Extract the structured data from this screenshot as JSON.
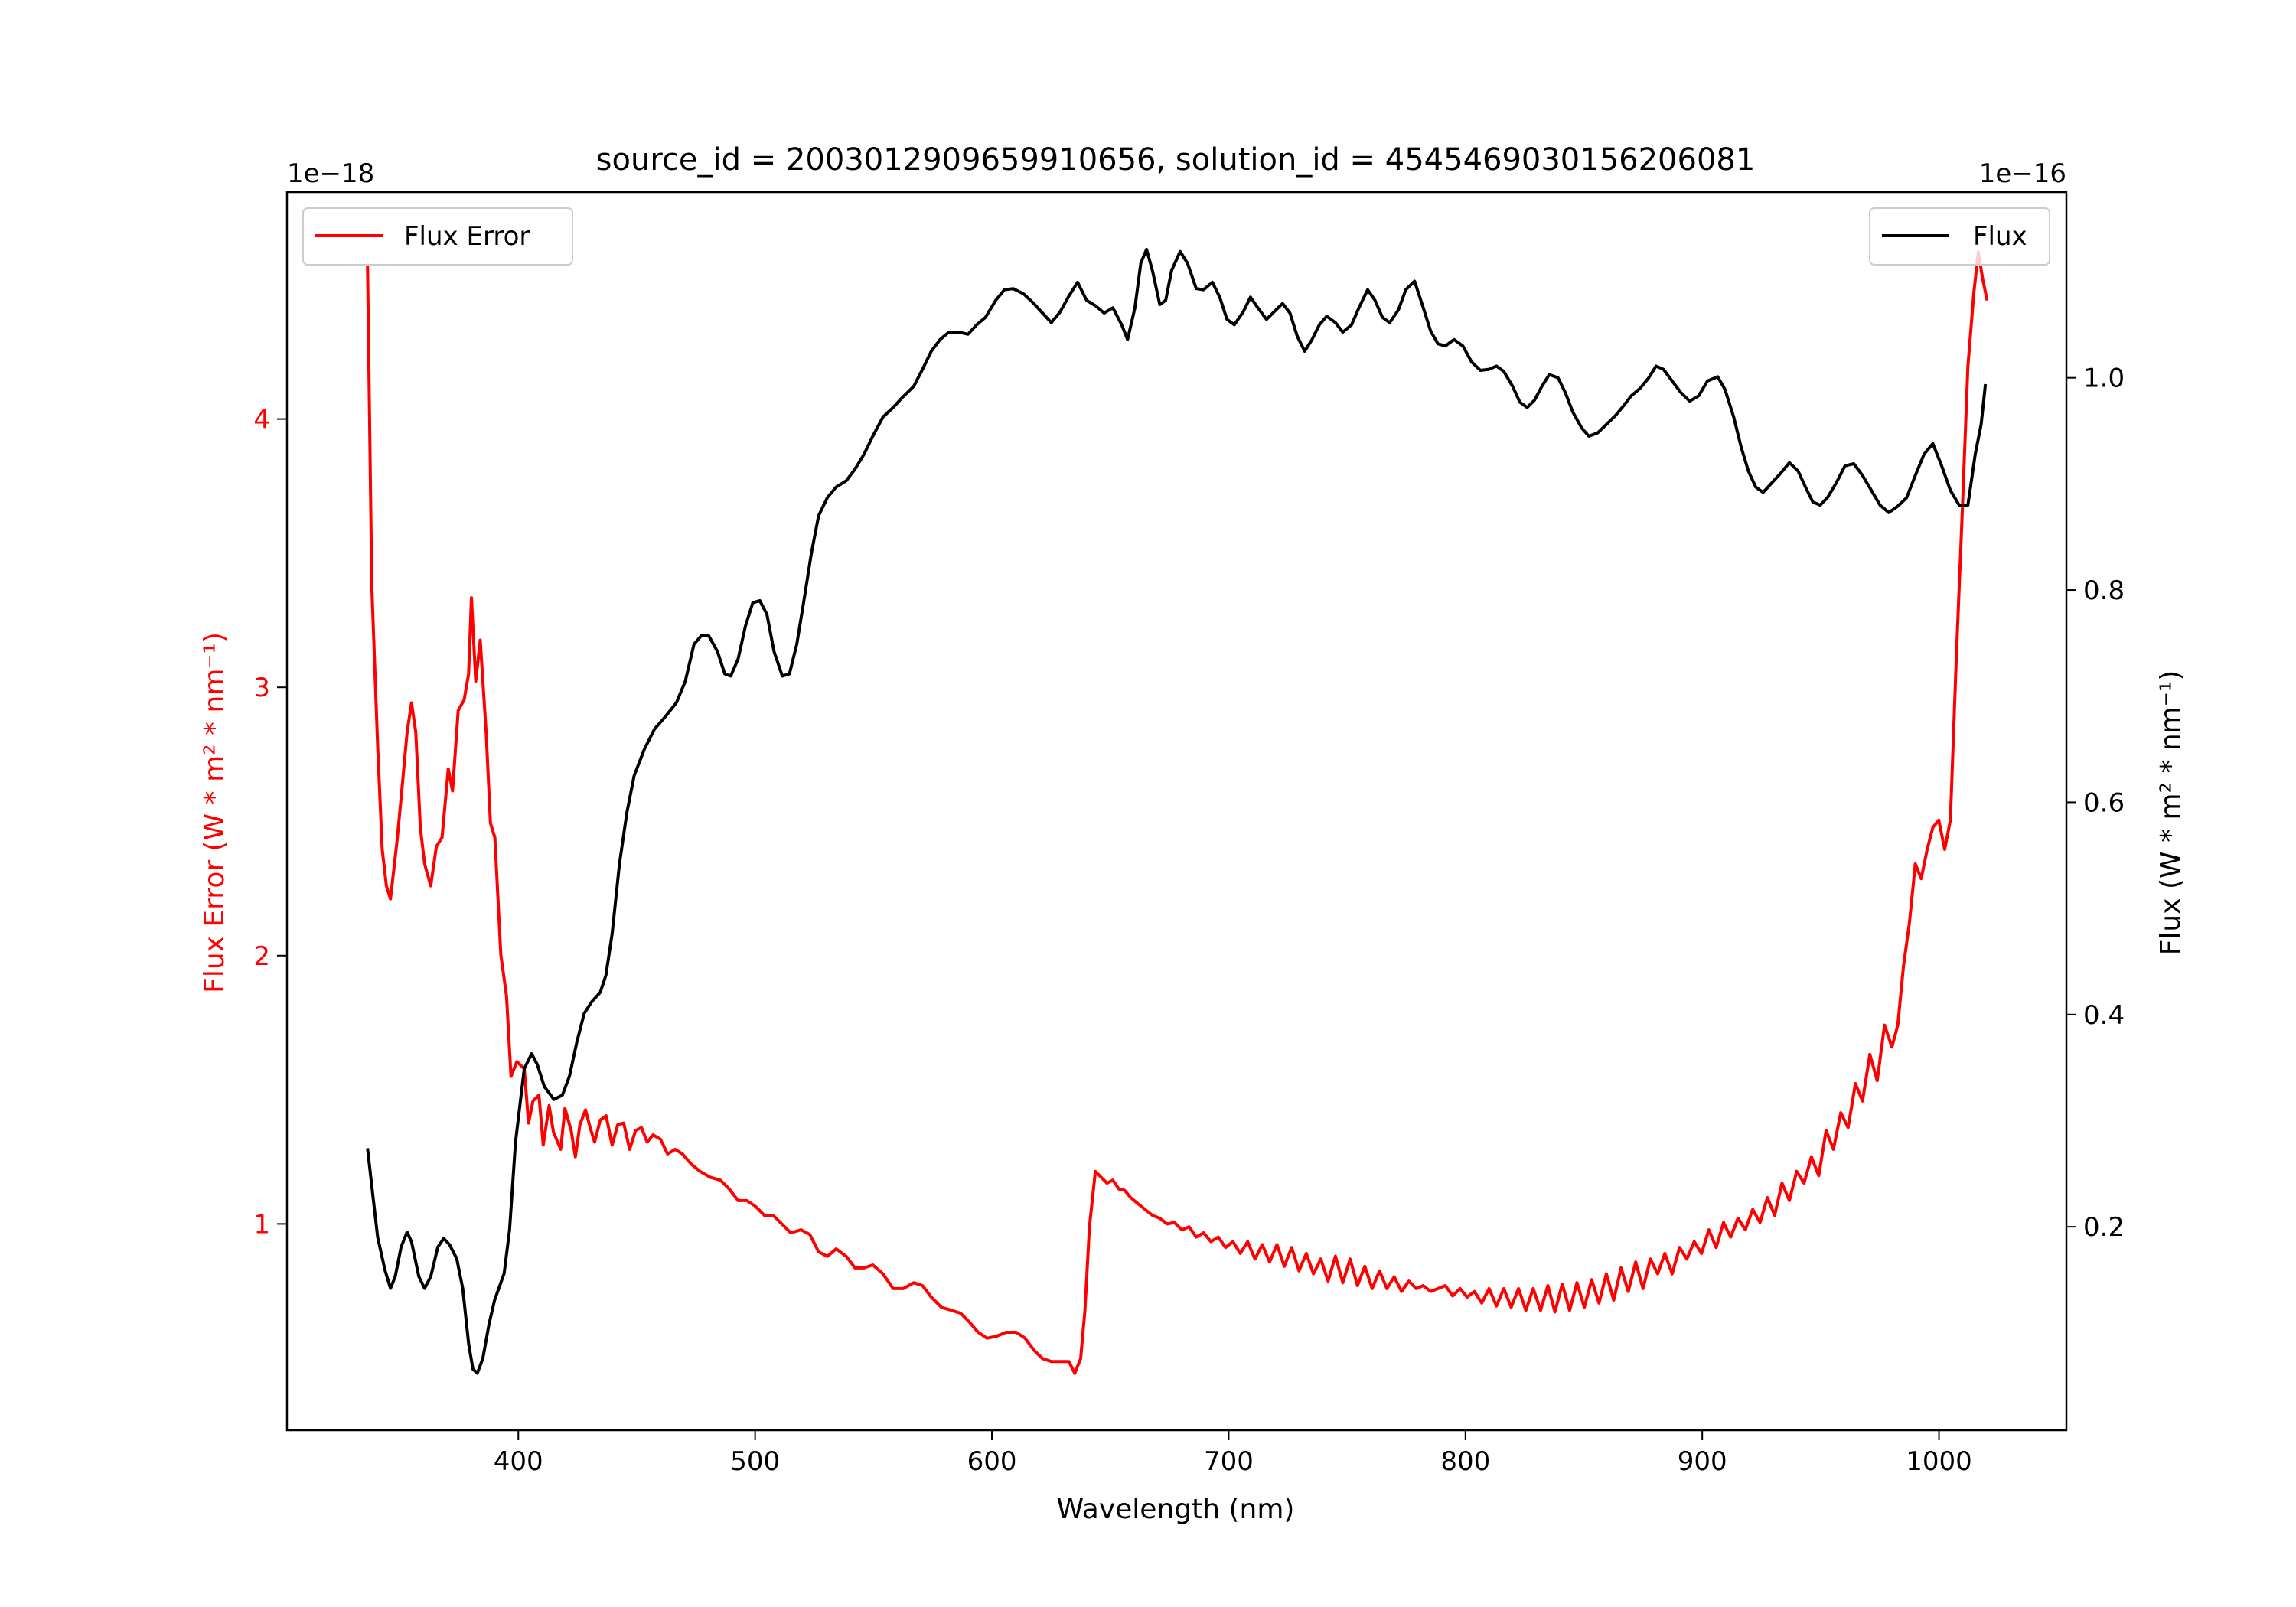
{
  "chart_data": {
    "type": "line",
    "title": "source_id = 2003012909659910656, solution_id = 4545469030156206081",
    "xlabel": "Wavelength (nm)",
    "ylabel_left": "Flux Error (W * m² * nm⁻¹)",
    "ylabel_right": "Flux (W * m² * nm⁻¹)",
    "offset_left": "1e−18",
    "offset_right": "1e−16",
    "xlim": [
      302.3,
      1053.8
    ],
    "ylim_left": [
      0.231,
      4.846
    ],
    "ylim_right": [
      0.0083,
      1.175
    ],
    "xticks": [
      400,
      500,
      600,
      700,
      800,
      900,
      1000
    ],
    "yticks_left": [
      1,
      2,
      3,
      4
    ],
    "yticks_right": [
      0.2,
      0.4,
      0.6,
      0.8,
      1.0
    ],
    "grid": false,
    "series": [
      {
        "name": "Flux Error",
        "axis": "left",
        "color": "#ff0000",
        "legend": "upper-left",
        "x": [
          336.3,
          338.1,
          340.6,
          342.5,
          344.3,
          346,
          348.7,
          350.5,
          353,
          354.9,
          356.7,
          358.6,
          360.4,
          363,
          365.4,
          367.8,
          370.4,
          372.2,
          374.6,
          377.1,
          379,
          380.2,
          382,
          383.9,
          386.4,
          388.2,
          390.1,
          392.6,
          395,
          396.9,
          399.4,
          402.5,
          404.3,
          406.2,
          408.7,
          410.5,
          413,
          414.8,
          417.9,
          419.7,
          422.3,
          424.1,
          426,
          428.4,
          430.3,
          432.2,
          434.6,
          437.1,
          439.6,
          442,
          444.5,
          447,
          449.5,
          452,
          454.4,
          456.9,
          460,
          463,
          466.2,
          469.3,
          473,
          476.7,
          481,
          485.3,
          489.1,
          492.8,
          496.5,
          500.2,
          503.9,
          507.6,
          511.3,
          515,
          519.4,
          523.1,
          526.8,
          530.5,
          534.2,
          538.5,
          542.2,
          546,
          549.7,
          554,
          558.3,
          562.6,
          567,
          570.7,
          574.4,
          578.7,
          583,
          586.8,
          590.5,
          594.2,
          597.9,
          601.6,
          606,
          610.3,
          614,
          617.7,
          621.4,
          625.1,
          628.8,
          632.5,
          635,
          637.5,
          639.3,
          641.2,
          643.7,
          646.1,
          648.6,
          651.1,
          653.6,
          656.1,
          658.6,
          661.6,
          664.7,
          667.8,
          670.9,
          674,
          677.1,
          680.2,
          683.3,
          686.3,
          689.4,
          692.5,
          695.6,
          698.7,
          701.8,
          704.9,
          708,
          711.1,
          714.2,
          717.3,
          720.4,
          723.5,
          726.6,
          729.7,
          732.8,
          735.8,
          738.9,
          742,
          745.1,
          748.2,
          751.3,
          754.4,
          757.5,
          760.6,
          763.7,
          766.8,
          769.9,
          773,
          776.1,
          779.2,
          782.2,
          785.3,
          788.4,
          791.5,
          794.6,
          797.7,
          800.7,
          803.8,
          806.9,
          810,
          813.1,
          816.2,
          819.3,
          822.4,
          825.5,
          828.6,
          831.7,
          834.8,
          837.8,
          840.9,
          844,
          847.1,
          850.2,
          853.3,
          856.4,
          859.5,
          862.6,
          865.7,
          868.8,
          871.9,
          875,
          878.1,
          881.2,
          884.2,
          887.3,
          890.4,
          893.5,
          896.6,
          899.7,
          902.8,
          905.9,
          909,
          912,
          915.1,
          918.2,
          921.3,
          924.4,
          927.5,
          930.6,
          933.7,
          936.8,
          939.9,
          943,
          946.1,
          949.2,
          952.3,
          955.4,
          958.5,
          961.6,
          964.7,
          967.7,
          970.8,
          973.9,
          977,
          980.1,
          982.6,
          985,
          987.5,
          990,
          992.5,
          995,
          997.4,
          999.9,
          1002.4,
          1004.8,
          1007.3,
          1009.8,
          1012.2,
          1014.7,
          1016.6,
          1018.4,
          1020.3
        ],
        "y": [
          4.578,
          3.378,
          2.778,
          2.396,
          2.26,
          2.211,
          2.423,
          2.587,
          2.832,
          2.942,
          2.832,
          2.478,
          2.342,
          2.26,
          2.407,
          2.44,
          2.696,
          2.614,
          2.914,
          2.953,
          3.05,
          3.334,
          3.023,
          3.176,
          2.832,
          2.494,
          2.44,
          2.003,
          1.85,
          1.55,
          1.605,
          1.578,
          1.376,
          1.458,
          1.48,
          1.294,
          1.441,
          1.343,
          1.278,
          1.43,
          1.348,
          1.25,
          1.37,
          1.425,
          1.36,
          1.305,
          1.387,
          1.403,
          1.294,
          1.37,
          1.376,
          1.278,
          1.348,
          1.359,
          1.305,
          1.332,
          1.316,
          1.261,
          1.278,
          1.261,
          1.223,
          1.196,
          1.174,
          1.163,
          1.13,
          1.087,
          1.087,
          1.065,
          1.032,
          1.032,
          1.0,
          0.967,
          0.978,
          0.961,
          0.896,
          0.879,
          0.907,
          0.879,
          0.836,
          0.836,
          0.847,
          0.814,
          0.759,
          0.759,
          0.781,
          0.77,
          0.727,
          0.689,
          0.678,
          0.667,
          0.634,
          0.596,
          0.574,
          0.58,
          0.596,
          0.596,
          0.574,
          0.53,
          0.498,
          0.487,
          0.487,
          0.487,
          0.443,
          0.498,
          0.678,
          0.989,
          1.196,
          1.174,
          1.152,
          1.163,
          1.13,
          1.125,
          1.098,
          1.076,
          1.054,
          1.032,
          1.021,
          1.0,
          1.005,
          0.978,
          0.989,
          0.951,
          0.967,
          0.934,
          0.951,
          0.912,
          0.934,
          0.89,
          0.934,
          0.869,
          0.923,
          0.858,
          0.923,
          0.842,
          0.912,
          0.825,
          0.89,
          0.814,
          0.869,
          0.787,
          0.88,
          0.781,
          0.869,
          0.77,
          0.842,
          0.759,
          0.825,
          0.759,
          0.803,
          0.748,
          0.787,
          0.759,
          0.77,
          0.748,
          0.759,
          0.77,
          0.732,
          0.759,
          0.727,
          0.748,
          0.705,
          0.759,
          0.694,
          0.759,
          0.689,
          0.759,
          0.678,
          0.759,
          0.678,
          0.77,
          0.672,
          0.776,
          0.678,
          0.781,
          0.689,
          0.792,
          0.705,
          0.814,
          0.716,
          0.836,
          0.748,
          0.858,
          0.759,
          0.869,
          0.814,
          0.89,
          0.814,
          0.912,
          0.869,
          0.934,
          0.89,
          0.978,
          0.912,
          1.005,
          0.951,
          1.021,
          0.978,
          1.054,
          1.005,
          1.098,
          1.032,
          1.152,
          1.087,
          1.196,
          1.152,
          1.25,
          1.18,
          1.348,
          1.278,
          1.414,
          1.359,
          1.523,
          1.458,
          1.632,
          1.534,
          1.741,
          1.659,
          1.741,
          1.96,
          2.123,
          2.342,
          2.287,
          2.396,
          2.478,
          2.505,
          2.396,
          2.505,
          3.105,
          3.651,
          4.196,
          4.469,
          4.622,
          4.524,
          4.442
        ]
      },
      {
        "name": "Flux",
        "axis": "right",
        "color": "#000000",
        "legend": "upper-right",
        "x": [
          336.3,
          338.8,
          340.6,
          343.7,
          346,
          348,
          350.5,
          353,
          354.9,
          358,
          360.4,
          363,
          366,
          368.5,
          371,
          374,
          376.5,
          379,
          380.8,
          382.7,
          385,
          387.6,
          390,
          394,
          396.3,
          398.8,
          402.5,
          405.6,
          408,
          411,
          415,
          418.6,
          421.6,
          424.7,
          427.8,
          431,
          434.6,
          437,
          439.6,
          442.7,
          445.8,
          448.9,
          453.2,
          457.5,
          461.8,
          466.8,
          470.5,
          474.2,
          477.3,
          480.4,
          484.1,
          487.2,
          489.7,
          492.8,
          495.9,
          499,
          502,
          505,
          508,
          511.5,
          514.5,
          517.6,
          520.6,
          523.7,
          526.8,
          530.5,
          534.2,
          538.5,
          542.2,
          546,
          549.7,
          554,
          558.3,
          562,
          567,
          570.7,
          574.4,
          578.1,
          581.8,
          586.1,
          589.9,
          593.6,
          597.3,
          601.6,
          605.3,
          609,
          613.4,
          617.7,
          621.4,
          625.1,
          628.8,
          632.5,
          636.2,
          640,
          643.7,
          647.4,
          651.1,
          654.8,
          657.3,
          660.4,
          662.9,
          665.3,
          667.8,
          670.9,
          673.4,
          675.9,
          679.5,
          682.6,
          686.3,
          689.4,
          693.1,
          696.2,
          699.3,
          702.4,
          706.1,
          709.2,
          712.3,
          716,
          719.1,
          722.8,
          725.9,
          729,
          732.1,
          735.2,
          738.3,
          741.4,
          745.1,
          748.2,
          751.9,
          755,
          758.7,
          761.8,
          764.9,
          768,
          771.7,
          774.8,
          778.5,
          782.2,
          785.3,
          788.4,
          791.5,
          795.2,
          798.9,
          802.6,
          806.3,
          810,
          813.1,
          816.2,
          819.9,
          823,
          826.1,
          829.2,
          832.3,
          835.4,
          839.1,
          842.2,
          845.3,
          849,
          852.1,
          855.8,
          859.5,
          863.2,
          866.9,
          870,
          873.7,
          877.4,
          880.5,
          883.6,
          887.3,
          891,
          894.7,
          898.5,
          902.2,
          906.5,
          909.6,
          913.3,
          916.4,
          919.5,
          922.6,
          925.7,
          929.4,
          933.1,
          936.8,
          940.5,
          943.6,
          946.7,
          949.8,
          952.9,
          956.6,
          960.3,
          964,
          967.7,
          971.4,
          975.1,
          978.8,
          982.6,
          986.3,
          990,
          993.7,
          997.4,
          1001.1,
          1004.8,
          1008.5,
          1012.2,
          1015.3,
          1017.8,
          1019.6
        ],
        "y": [
          0.274,
          0.225,
          0.19,
          0.159,
          0.142,
          0.153,
          0.181,
          0.195,
          0.186,
          0.153,
          0.142,
          0.153,
          0.181,
          0.189,
          0.183,
          0.17,
          0.142,
          0.09,
          0.066,
          0.062,
          0.076,
          0.108,
          0.131,
          0.156,
          0.197,
          0.28,
          0.349,
          0.363,
          0.353,
          0.332,
          0.32,
          0.324,
          0.342,
          0.374,
          0.401,
          0.412,
          0.421,
          0.437,
          0.476,
          0.542,
          0.59,
          0.625,
          0.65,
          0.669,
          0.68,
          0.694,
          0.714,
          0.749,
          0.757,
          0.757,
          0.742,
          0.721,
          0.719,
          0.735,
          0.766,
          0.788,
          0.79,
          0.777,
          0.742,
          0.719,
          0.721,
          0.749,
          0.79,
          0.834,
          0.87,
          0.887,
          0.897,
          0.903,
          0.914,
          0.928,
          0.945,
          0.963,
          0.972,
          0.981,
          0.992,
          1.008,
          1.025,
          1.036,
          1.043,
          1.043,
          1.041,
          1.05,
          1.057,
          1.073,
          1.083,
          1.084,
          1.079,
          1.07,
          1.061,
          1.052,
          1.062,
          1.077,
          1.09,
          1.073,
          1.068,
          1.061,
          1.066,
          1.05,
          1.036,
          1.066,
          1.108,
          1.121,
          1.101,
          1.069,
          1.073,
          1.101,
          1.119,
          1.108,
          1.084,
          1.083,
          1.09,
          1.076,
          1.055,
          1.05,
          1.062,
          1.076,
          1.066,
          1.055,
          1.062,
          1.07,
          1.061,
          1.039,
          1.025,
          1.036,
          1.05,
          1.058,
          1.052,
          1.043,
          1.05,
          1.066,
          1.083,
          1.073,
          1.057,
          1.052,
          1.064,
          1.083,
          1.091,
          1.066,
          1.044,
          1.032,
          1.03,
          1.036,
          1.03,
          1.015,
          1.007,
          1.008,
          1.011,
          1.006,
          0.992,
          0.977,
          0.972,
          0.979,
          0.992,
          1.003,
          1.0,
          0.986,
          0.968,
          0.953,
          0.945,
          0.948,
          0.956,
          0.964,
          0.974,
          0.983,
          0.99,
          1.0,
          1.011,
          1.008,
          0.997,
          0.986,
          0.978,
          0.983,
          0.997,
          1.001,
          0.989,
          0.963,
          0.935,
          0.912,
          0.897,
          0.892,
          0.901,
          0.91,
          0.92,
          0.912,
          0.897,
          0.883,
          0.88,
          0.887,
          0.901,
          0.917,
          0.919,
          0.908,
          0.894,
          0.88,
          0.873,
          0.879,
          0.887,
          0.908,
          0.928,
          0.938,
          0.917,
          0.894,
          0.88,
          0.88,
          0.928,
          0.956,
          0.994
        ]
      }
    ]
  }
}
